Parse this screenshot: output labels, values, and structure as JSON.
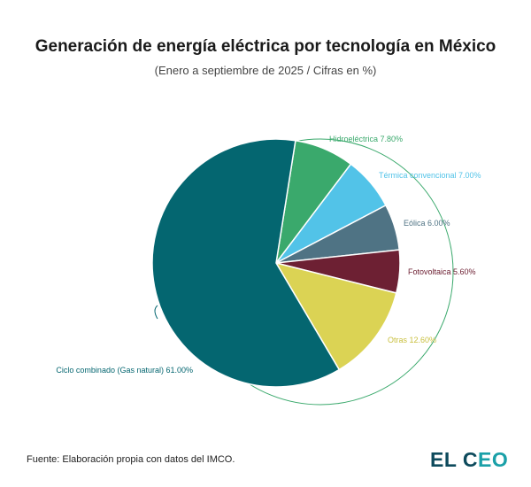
{
  "chart_data": {
    "type": "pie",
    "title": "Generación de energía eléctrica por tecnología en México",
    "subtitle": "(Enero a septiembre de 2025 / Cifras en %)",
    "slices": [
      {
        "label": "Hidroeléctrica",
        "value": 7.8,
        "display": "Hidroeléctrica 7.80%",
        "color": "#3aa96c"
      },
      {
        "label": "Térmica convencional",
        "value": 7.0,
        "display": "Térmica convencional 7.00%",
        "color": "#52c3e8"
      },
      {
        "label": "Eólica",
        "value": 6.0,
        "display": "Eólica 6.00%",
        "color": "#4f7384"
      },
      {
        "label": "Fotovoltaica",
        "value": 5.6,
        "display": "Fotovoltaica 5.60%",
        "color": "#6d2033"
      },
      {
        "label": "Otras",
        "value": 12.6,
        "display": "Otras 12.60%",
        "color": "#dbd354"
      },
      {
        "label": "Ciclo combinado (Gas natural)",
        "value": 61.0,
        "display": "Ciclo combinado (Gas natural) 61.00%",
        "color": "#046670"
      }
    ]
  },
  "source": "Fuente: Elaboración propia con datos del IMCO.",
  "logo": "EL CEO"
}
